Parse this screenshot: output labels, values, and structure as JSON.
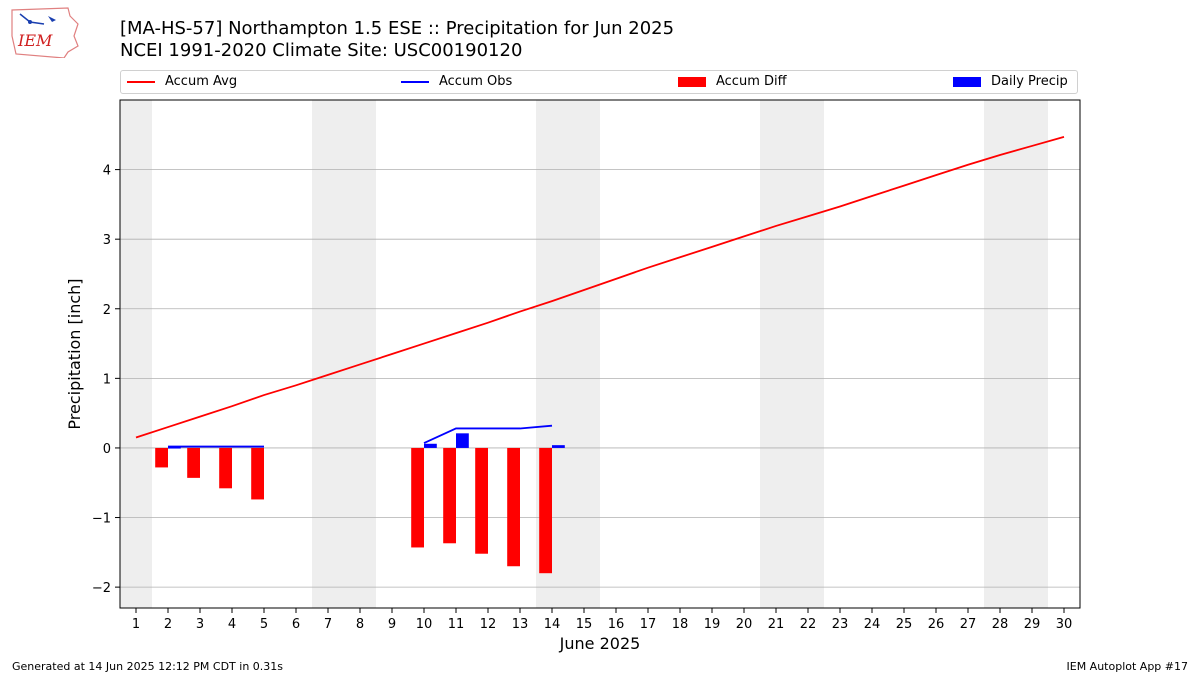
{
  "logo": {
    "text": "IEM"
  },
  "header": {
    "title_line1": "[MA-HS-57] Northampton 1.5 ESE :: Precipitation for Jun 2025",
    "title_line2": "NCEI 1991-2020 Climate Site: USC00190120"
  },
  "footer": {
    "generated": "Generated at 14 Jun 2025 12:12 PM CDT in 0.31s",
    "app": "IEM Autoplot App #17"
  },
  "colors": {
    "avg": "#ff0000",
    "obs": "#0000ff",
    "diff": "#ff0000",
    "daily": "#0000ff",
    "weekend": "#eeeeee",
    "grid": "#b0b0b0"
  },
  "chart_data": {
    "type": "bar",
    "title": "[MA-HS-57] Northampton 1.5 ESE :: Precipitation for Jun 2025",
    "subtitle": "NCEI 1991-2020 Climate Site: USC00190120",
    "xlabel": "June 2025",
    "ylabel": "Precipitation [inch]",
    "xlim": [
      0.5,
      30.5
    ],
    "ylim": [
      -2.3,
      5.0
    ],
    "yticks": [
      -2,
      -1,
      0,
      1,
      2,
      3,
      4
    ],
    "ytick_labels": [
      "−2",
      "−1",
      "0",
      "1",
      "2",
      "3",
      "4"
    ],
    "days": [
      1,
      2,
      3,
      4,
      5,
      6,
      7,
      8,
      9,
      10,
      11,
      12,
      13,
      14,
      15,
      16,
      17,
      18,
      19,
      20,
      21,
      22,
      23,
      24,
      25,
      26,
      27,
      28,
      29,
      30
    ],
    "weekend_shading": [
      [
        0.5,
        1.5
      ],
      [
        6.5,
        8.5
      ],
      [
        13.5,
        15.5
      ],
      [
        20.5,
        22.5
      ],
      [
        27.5,
        29.5
      ]
    ],
    "grid": true,
    "legend_placement": "top",
    "series": [
      {
        "name": "Accum Avg",
        "type": "line",
        "x": [
          1,
          2,
          3,
          4,
          5,
          6,
          7,
          8,
          9,
          10,
          11,
          12,
          13,
          14,
          15,
          16,
          17,
          18,
          19,
          20,
          21,
          22,
          23,
          24,
          25,
          26,
          27,
          28,
          29,
          30
        ],
        "values": [
          0.15,
          0.3,
          0.45,
          0.6,
          0.76,
          0.9,
          1.05,
          1.2,
          1.35,
          1.5,
          1.65,
          1.8,
          1.96,
          2.11,
          2.27,
          2.43,
          2.59,
          2.74,
          2.89,
          3.04,
          3.19,
          3.33,
          3.47,
          3.62,
          3.77,
          3.92,
          4.07,
          4.21,
          4.34,
          4.47
        ]
      },
      {
        "name": "Accum Obs",
        "type": "line",
        "segments": [
          {
            "x": [
              2,
              3,
              4,
              5
            ],
            "values": [
              0.02,
              0.02,
              0.02,
              0.02
            ]
          },
          {
            "x": [
              10,
              11,
              12,
              13,
              14
            ],
            "values": [
              0.07,
              0.28,
              0.28,
              0.28,
              0.32
            ]
          }
        ]
      },
      {
        "name": "Accum Diff",
        "type": "bar",
        "x": [
          2,
          3,
          4,
          5,
          10,
          11,
          12,
          13,
          14
        ],
        "values": [
          -0.28,
          -0.43,
          -0.58,
          -0.74,
          -1.43,
          -1.37,
          -1.52,
          -1.7,
          -1.8
        ]
      },
      {
        "name": "Daily Precip",
        "type": "bar",
        "x": [
          2,
          10,
          11,
          14
        ],
        "values": [
          0.02,
          0.06,
          0.21,
          0.04
        ]
      }
    ]
  }
}
